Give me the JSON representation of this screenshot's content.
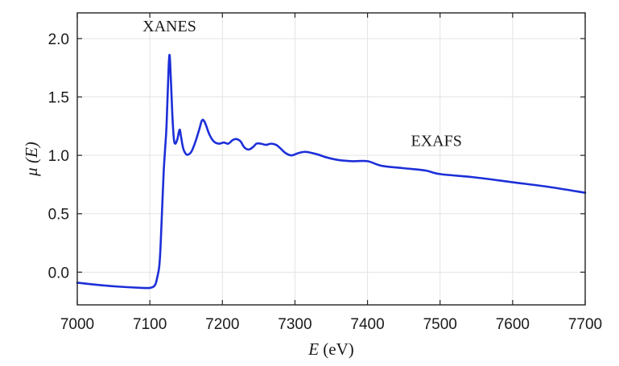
{
  "chart_data": {
    "type": "line",
    "title": "",
    "xlabel_var": "E",
    "xlabel_unit": "(eV)",
    "ylabel_var": "μ",
    "ylabel_arg": "(E)",
    "xlim": [
      7000,
      7700
    ],
    "ylim": [
      -0.28,
      2.22
    ],
    "grid": true,
    "x_ticks": [
      7000,
      7100,
      7200,
      7300,
      7400,
      7500,
      7600,
      7700
    ],
    "x_tick_labels": [
      "7000",
      "7100",
      "7200",
      "7300",
      "7400",
      "7500",
      "7600",
      "7700"
    ],
    "y_ticks": [
      0.0,
      0.5,
      1.0,
      1.5,
      2.0
    ],
    "y_tick_labels": [
      "0.0",
      "0.5",
      "1.0",
      "1.5",
      "2.0"
    ],
    "series": [
      {
        "color": "#1c2fd8",
        "points": [
          [
            7000,
            -0.09
          ],
          [
            7030,
            -0.11
          ],
          [
            7060,
            -0.125
          ],
          [
            7090,
            -0.135
          ],
          [
            7100,
            -0.135
          ],
          [
            7105,
            -0.125
          ],
          [
            7108,
            -0.1
          ],
          [
            7110,
            -0.05
          ],
          [
            7113,
            0.05
          ],
          [
            7115,
            0.25
          ],
          [
            7117,
            0.55
          ],
          [
            7119,
            0.85
          ],
          [
            7121,
            1.05
          ],
          [
            7123,
            1.25
          ],
          [
            7125,
            1.6
          ],
          [
            7127,
            1.86
          ],
          [
            7129,
            1.65
          ],
          [
            7131,
            1.35
          ],
          [
            7133,
            1.15
          ],
          [
            7135,
            1.1
          ],
          [
            7138,
            1.14
          ],
          [
            7141,
            1.22
          ],
          [
            7143,
            1.16
          ],
          [
            7146,
            1.06
          ],
          [
            7150,
            1.01
          ],
          [
            7154,
            1.01
          ],
          [
            7158,
            1.04
          ],
          [
            7163,
            1.12
          ],
          [
            7168,
            1.22
          ],
          [
            7172,
            1.3
          ],
          [
            7176,
            1.28
          ],
          [
            7182,
            1.18
          ],
          [
            7188,
            1.12
          ],
          [
            7195,
            1.1
          ],
          [
            7202,
            1.11
          ],
          [
            7208,
            1.1
          ],
          [
            7214,
            1.13
          ],
          [
            7219,
            1.14
          ],
          [
            7225,
            1.12
          ],
          [
            7230,
            1.07
          ],
          [
            7236,
            1.05
          ],
          [
            7242,
            1.07
          ],
          [
            7247,
            1.1
          ],
          [
            7253,
            1.1
          ],
          [
            7260,
            1.09
          ],
          [
            7267,
            1.1
          ],
          [
            7274,
            1.09
          ],
          [
            7280,
            1.06
          ],
          [
            7287,
            1.02
          ],
          [
            7295,
            1.0
          ],
          [
            7305,
            1.02
          ],
          [
            7315,
            1.03
          ],
          [
            7330,
            1.01
          ],
          [
            7345,
            0.98
          ],
          [
            7360,
            0.96
          ],
          [
            7380,
            0.95
          ],
          [
            7400,
            0.95
          ],
          [
            7420,
            0.91
          ],
          [
            7450,
            0.89
          ],
          [
            7480,
            0.87
          ],
          [
            7500,
            0.84
          ],
          [
            7550,
            0.81
          ],
          [
            7600,
            0.77
          ],
          [
            7650,
            0.73
          ],
          [
            7700,
            0.68
          ]
        ]
      }
    ],
    "annotations": [
      {
        "text": "XANES",
        "x": 7127,
        "y": 2.06
      },
      {
        "text": "EXAFS",
        "x": 7495,
        "y": 1.08
      }
    ]
  }
}
